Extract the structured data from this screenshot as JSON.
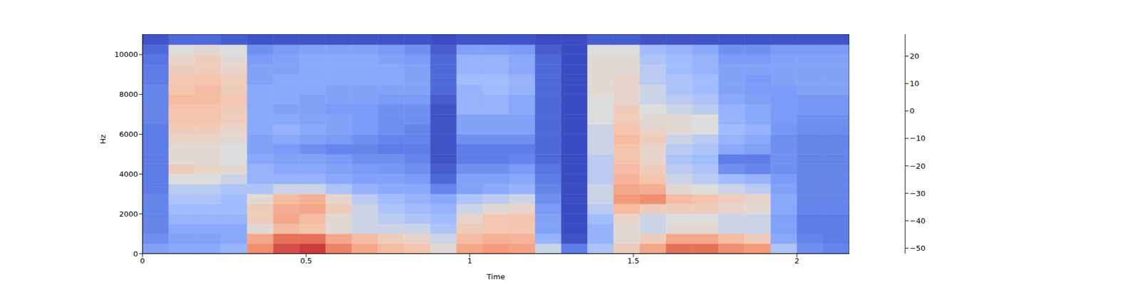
{
  "chart_data": {
    "type": "heatmap",
    "x_label": "Time",
    "y_label": "Hz",
    "xlim": [
      0,
      2.16
    ],
    "xticks": [
      0,
      0.5,
      1,
      1.5,
      2
    ],
    "ylim": [
      0,
      11025
    ],
    "yticks": [
      0,
      2000,
      4000,
      6000,
      8000,
      10000
    ],
    "time_bins": [
      0,
      0.08,
      0.16,
      0.24,
      0.32,
      0.4,
      0.48,
      0.56,
      0.64,
      0.72,
      0.8,
      0.88,
      0.96,
      1.04,
      1.12,
      1.2,
      1.28,
      1.36,
      1.44,
      1.52,
      1.6,
      1.68,
      1.76,
      1.84,
      1.92,
      2.0,
      2.08,
      2.16
    ],
    "freq_bins": [
      0,
      500,
      1000,
      1500,
      2000,
      2500,
      3000,
      3500,
      4000,
      4500,
      5000,
      5500,
      6000,
      6500,
      7000,
      7500,
      8000,
      8500,
      9000,
      9500,
      10000,
      10500,
      11025
    ],
    "cells": [
      [
        -30,
        -28,
        -28,
        -25,
        10,
        20,
        22,
        12,
        5,
        0,
        -2,
        -10,
        5,
        8,
        6,
        -15,
        -40,
        -20,
        -5,
        5,
        15,
        15,
        10,
        8,
        -20,
        -35,
        -38
      ],
      [
        -35,
        -30,
        -30,
        -28,
        5,
        15,
        15,
        5,
        0,
        -5,
        -8,
        -15,
        0,
        3,
        2,
        -25,
        -50,
        -25,
        -10,
        -5,
        5,
        5,
        0,
        -5,
        -28,
        -38,
        -40
      ],
      [
        -38,
        -28,
        -28,
        -28,
        -10,
        0,
        -2,
        -10,
        -15,
        -15,
        -15,
        -20,
        -5,
        -3,
        -3,
        -30,
        -52,
        -25,
        -10,
        -15,
        -10,
        -10,
        -15,
        -15,
        -30,
        -40,
        -40
      ],
      [
        -38,
        -25,
        -25,
        -25,
        -5,
        5,
        0,
        -10,
        -15,
        -18,
        -20,
        -22,
        -8,
        -3,
        -2,
        -30,
        -52,
        -22,
        -8,
        -15,
        -12,
        -12,
        -15,
        -15,
        -30,
        -40,
        -40
      ],
      [
        -38,
        -22,
        -22,
        -22,
        -5,
        3,
        5,
        -5,
        -15,
        -20,
        -22,
        -25,
        -15,
        -10,
        -8,
        -32,
        -52,
        -18,
        0,
        -5,
        -5,
        -5,
        -8,
        -10,
        -28,
        -38,
        -38
      ],
      [
        -38,
        -20,
        -20,
        -22,
        -10,
        0,
        3,
        -8,
        -18,
        -22,
        -25,
        -28,
        -20,
        -18,
        -15,
        -35,
        -52,
        -15,
        8,
        10,
        0,
        -2,
        -5,
        -8,
        -28,
        -38,
        -38
      ],
      [
        -40,
        -18,
        -18,
        -20,
        -20,
        -15,
        -15,
        -20,
        -25,
        -28,
        -28,
        -38,
        -30,
        -28,
        -25,
        -38,
        -52,
        -15,
        5,
        3,
        -10,
        -12,
        -15,
        -18,
        -30,
        -38,
        -38
      ],
      [
        -40,
        -12,
        -12,
        -15,
        -25,
        -25,
        -25,
        -28,
        -30,
        -30,
        -32,
        -45,
        -30,
        -30,
        -28,
        -40,
        -52,
        -18,
        2,
        -2,
        -15,
        -18,
        -22,
        -25,
        -32,
        -38,
        -38
      ],
      [
        -40,
        -5,
        -8,
        -10,
        -25,
        -28,
        -28,
        -30,
        -32,
        -33,
        -35,
        -48,
        -35,
        -35,
        -32,
        -42,
        -52,
        -18,
        0,
        -5,
        -18,
        -20,
        -35,
        -38,
        -35,
        -38,
        -38
      ],
      [
        -40,
        -10,
        -10,
        -12,
        -28,
        -30,
        -30,
        -32,
        -35,
        -35,
        -38,
        -50,
        -40,
        -40,
        -38,
        -45,
        -52,
        -18,
        -2,
        -8,
        -20,
        -22,
        -40,
        -40,
        -35,
        -38,
        -38
      ],
      [
        -40,
        -10,
        -10,
        -12,
        -30,
        -32,
        -35,
        -38,
        -38,
        -40,
        -40,
        -50,
        -40,
        -40,
        -40,
        -45,
        -52,
        -15,
        -2,
        -8,
        -18,
        -20,
        -28,
        -30,
        -35,
        -38,
        -38
      ],
      [
        -40,
        -8,
        -8,
        -10,
        -30,
        -28,
        -30,
        -32,
        -35,
        -38,
        -38,
        -50,
        -35,
        -35,
        -35,
        -45,
        -52,
        -15,
        0,
        -5,
        -15,
        -18,
        -25,
        -28,
        -35,
        -38,
        -38
      ],
      [
        -40,
        -5,
        -5,
        -8,
        -28,
        -25,
        -28,
        -30,
        -32,
        -35,
        -38,
        -50,
        -30,
        -30,
        -30,
        -45,
        -52,
        -15,
        -2,
        -8,
        -10,
        -12,
        -22,
        -25,
        -33,
        -36,
        -36
      ],
      [
        -38,
        -2,
        -2,
        -5,
        -28,
        -28,
        -30,
        -30,
        -32,
        -35,
        -35,
        -50,
        -30,
        -30,
        -30,
        -45,
        -52,
        -12,
        -5,
        -10,
        -10,
        -12,
        -25,
        -28,
        -32,
        -35,
        -35
      ],
      [
        -38,
        -2,
        -2,
        -5,
        -28,
        -30,
        -30,
        -32,
        -32,
        -35,
        -35,
        -50,
        -25,
        -25,
        -28,
        -45,
        -52,
        -12,
        -5,
        -12,
        -15,
        -18,
        -25,
        -28,
        -32,
        -33,
        -33
      ],
      [
        -38,
        0,
        0,
        -3,
        -28,
        -28,
        -30,
        -30,
        -30,
        -32,
        -32,
        -48,
        -25,
        -25,
        -28,
        -45,
        -52,
        -12,
        -8,
        -15,
        -18,
        -20,
        -28,
        -30,
        -32,
        -33,
        -33
      ],
      [
        -38,
        -2,
        0,
        -5,
        -28,
        -28,
        -28,
        -30,
        -30,
        -30,
        -30,
        -45,
        -25,
        -22,
        -25,
        -45,
        -52,
        -10,
        -8,
        -15,
        -20,
        -22,
        -30,
        -32,
        -32,
        -30,
        -30
      ],
      [
        -40,
        -3,
        -2,
        -5,
        -30,
        -28,
        -28,
        -28,
        -28,
        -28,
        -30,
        -45,
        -22,
        -22,
        -25,
        -45,
        -52,
        -10,
        -8,
        -18,
        -20,
        -22,
        -30,
        -32,
        -30,
        -30,
        -30
      ],
      [
        -40,
        -5,
        -5,
        -8,
        -30,
        -30,
        -28,
        -28,
        -28,
        -28,
        -30,
        -45,
        -25,
        -25,
        -28,
        -45,
        -52,
        -10,
        -10,
        -18,
        -22,
        -25,
        -30,
        -30,
        -30,
        -30,
        -30
      ],
      [
        -42,
        -8,
        -5,
        -10,
        -32,
        -30,
        -28,
        -28,
        -28,
        -30,
        -32,
        -45,
        -25,
        -25,
        -28,
        -45,
        -52,
        -10,
        -10,
        -20,
        -22,
        -25,
        -32,
        -32,
        -30,
        -30,
        -30
      ],
      [
        -45,
        -12,
        -10,
        -12,
        -35,
        -32,
        -30,
        -30,
        -30,
        -32,
        -35,
        -48,
        -30,
        -30,
        -32,
        -48,
        -52,
        -12,
        -12,
        -22,
        -25,
        -28,
        -35,
        -35,
        -32,
        -32,
        -32
      ],
      [
        -50,
        -45,
        -45,
        -48,
        -50,
        -50,
        -50,
        -50,
        -50,
        -50,
        -50,
        -52,
        -50,
        -50,
        -50,
        -52,
        -52,
        -48,
        -48,
        -50,
        -50,
        -50,
        -50,
        -50,
        -50,
        -50,
        -50
      ]
    ],
    "colorbar": {
      "range": [
        -52,
        28
      ],
      "ticks": [
        {
          "value": -50,
          "label": "−50"
        },
        {
          "value": -40,
          "label": "−40"
        },
        {
          "value": -30,
          "label": "−30"
        },
        {
          "value": -20,
          "label": "−20"
        },
        {
          "value": -10,
          "label": "−10"
        },
        0,
        10,
        20
      ]
    }
  }
}
